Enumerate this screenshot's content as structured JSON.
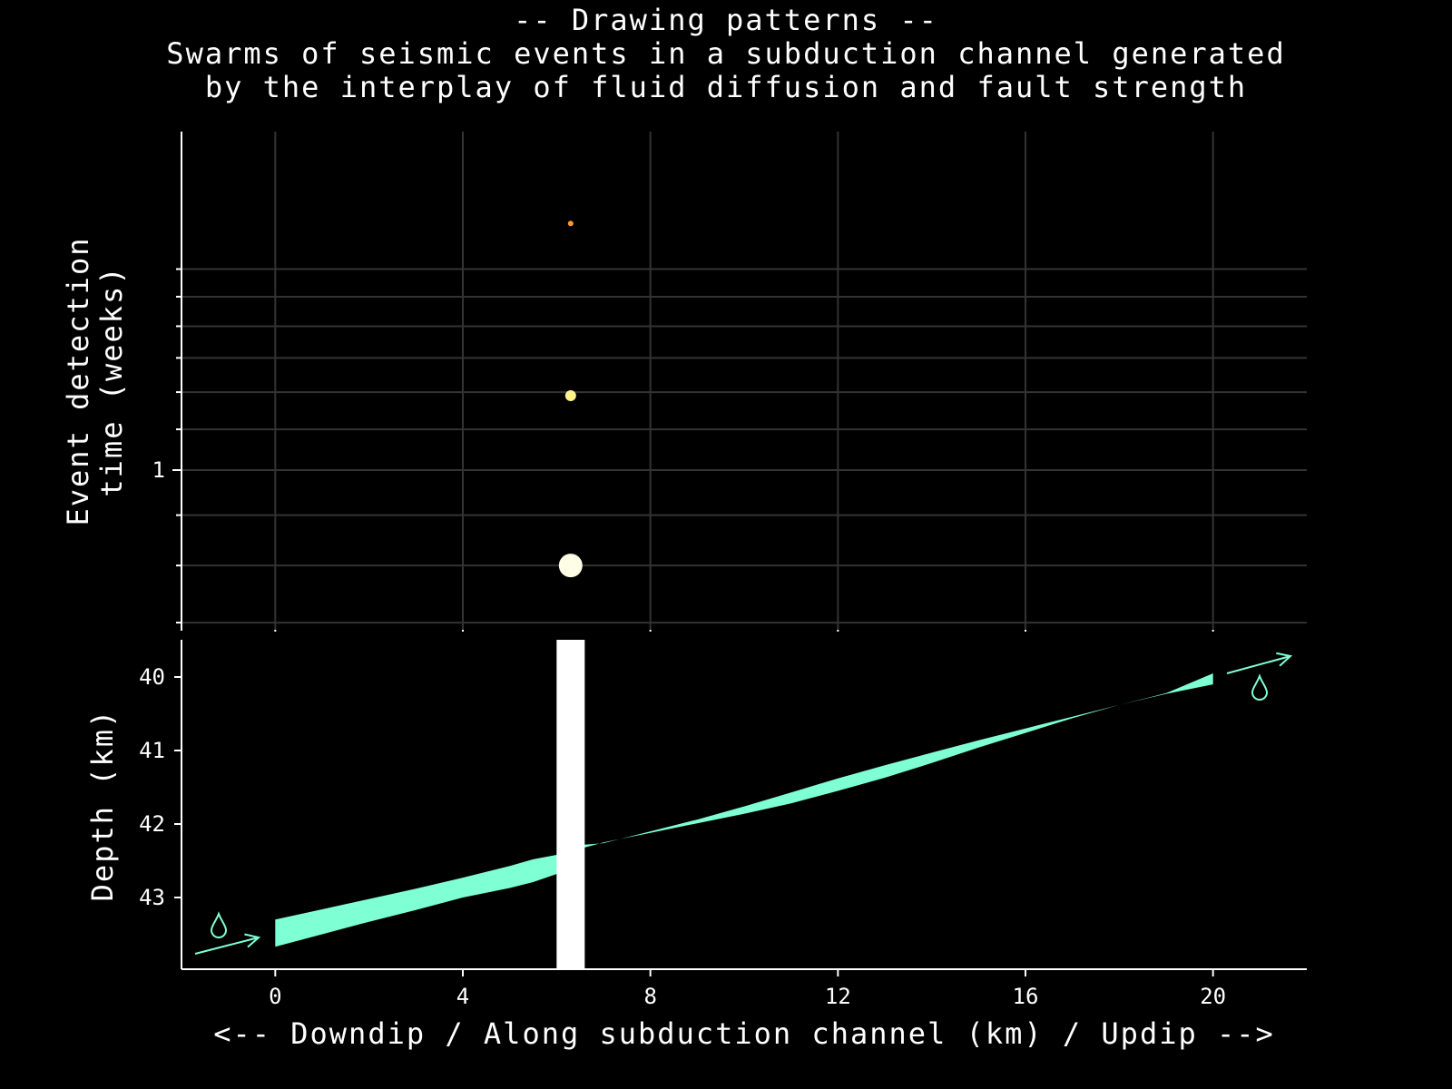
{
  "title": {
    "line1": "-- Drawing patterns --",
    "line2": "Swarms of seismic events in a subduction channel generated",
    "line3": "by the interplay of fluid diffusion and fault strength"
  },
  "colors": {
    "background": "#000000",
    "grid": "#333333",
    "axis": "#ffffff",
    "channel": "#7fffd4",
    "fault_band": "#ffffff",
    "event_large": "#fffde6",
    "event_medium": "#fff28a",
    "event_small": "#ff9933"
  },
  "icons": [
    "droplet-icon",
    "arrow-icon"
  ],
  "chart_data": [
    {
      "type": "scatter",
      "ylabel_line1": "Event detection",
      "ylabel_line2": "time (weeks)",
      "y_scale": "log",
      "y_ticks": [
        1
      ],
      "y_tick_labels": [
        "1"
      ],
      "grid": true,
      "series": [
        {
          "points": [
            {
              "x": 6.3,
              "y": 0.8,
              "size": "large",
              "color": "#fffde6"
            },
            {
              "x": 6.3,
              "y": 1.19,
              "size": "medium",
              "color": "#fff28a"
            },
            {
              "x": 6.3,
              "y": 1.78,
              "size": "small",
              "color": "#ff9933"
            }
          ]
        }
      ]
    },
    {
      "type": "area",
      "xlabel": "<-- Downdip / Along subduction channel (km) / Updip -->",
      "ylabel": "Depth (km)",
      "x_ticks": [
        0,
        4,
        8,
        12,
        16,
        20
      ],
      "y_ticks": [
        40,
        41,
        42,
        43
      ],
      "ylim": [
        43.9,
        39.5
      ],
      "xlim": [
        -2,
        22
      ],
      "channel": {
        "x": [
          0,
          1,
          2,
          3,
          4,
          5,
          5.5,
          6,
          6.3,
          6.6,
          7,
          8,
          9,
          10,
          11,
          12,
          13,
          14,
          15,
          16,
          17,
          18,
          19,
          20
        ],
        "top": [
          43.3,
          43.16,
          43.02,
          42.88,
          42.73,
          42.57,
          42.48,
          42.42,
          42.27,
          42.28,
          42.26,
          42.1,
          41.94,
          41.76,
          41.57,
          41.38,
          41.2,
          41.03,
          40.86,
          40.7,
          40.54,
          40.38,
          40.22,
          39.95
        ],
        "bottom": [
          43.67,
          43.5,
          43.33,
          43.17,
          43.0,
          42.87,
          42.79,
          42.68,
          42.48,
          42.32,
          42.25,
          42.12,
          41.99,
          41.86,
          41.72,
          41.55,
          41.37,
          41.17,
          40.96,
          40.76,
          40.56,
          40.38,
          40.23,
          40.1
        ]
      },
      "fault_band": {
        "x_start": 6.0,
        "x_end": 6.6
      }
    }
  ]
}
